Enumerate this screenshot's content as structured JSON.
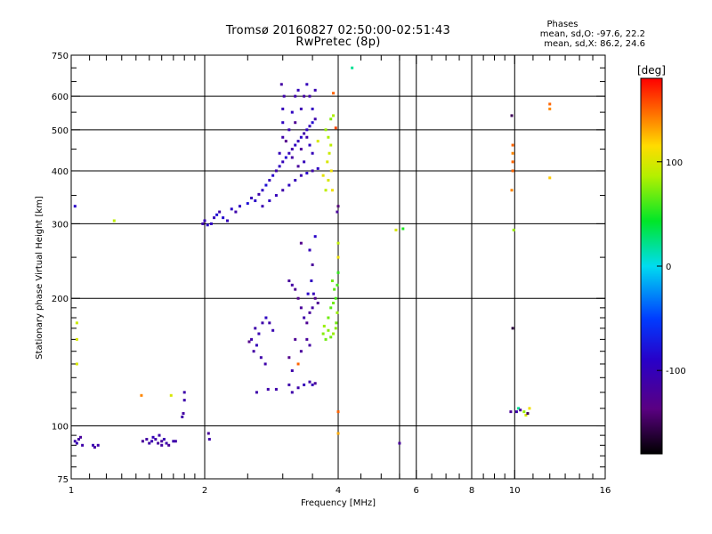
{
  "chart_data": {
    "type": "scatter",
    "title": "Tromsø 20160827 02:50:00-02:51:43",
    "subtitle": "RwPretec (8p)",
    "xlabel": "Frequency [MHz]",
    "ylabel": "Stationary phase Virtual Height [km]",
    "x_scale": "log",
    "y_scale": "log",
    "xlim": [
      1,
      16
    ],
    "ylim": [
      75,
      750
    ],
    "xticks": [
      1,
      2,
      4,
      6,
      8,
      10,
      16
    ],
    "xtick_labels": [
      "1",
      "2",
      "4",
      "6",
      "8",
      "10",
      "16"
    ],
    "xgrid": [
      2,
      4,
      5.5,
      6,
      8,
      10
    ],
    "yticks": [
      75,
      100,
      200,
      300,
      400,
      500,
      600,
      750
    ],
    "ytick_labels": [
      "75",
      "100",
      "200",
      "300",
      "400",
      "500",
      "600",
      "750"
    ],
    "ygrid": [
      100,
      200,
      300,
      400,
      500,
      600
    ],
    "grid": true,
    "stats": {
      "heading": "Phases",
      "o_line": "mean, sd,O: -97.6, 22.2",
      "x_line": "mean, sd,X:  86.2, 24.6"
    },
    "colorbar": {
      "label": "[deg]",
      "min": -180,
      "max": 180,
      "ticks": [
        100,
        0,
        -100
      ],
      "tick_labels": [
        "100",
        "0",
        "-100"
      ]
    },
    "points": [
      [
        1.02,
        92,
        -110
      ],
      [
        1.04,
        93,
        -115
      ],
      [
        1.03,
        91,
        -105
      ],
      [
        1.06,
        90,
        -110
      ],
      [
        1.05,
        94,
        -120
      ],
      [
        1.12,
        90,
        -105
      ],
      [
        1.15,
        90,
        -110
      ],
      [
        1.13,
        89,
        -115
      ],
      [
        1.02,
        330,
        -90
      ],
      [
        1.25,
        305,
        90
      ],
      [
        1.03,
        160,
        100
      ],
      [
        1.03,
        140,
        100
      ],
      [
        1.03,
        175,
        95
      ],
      [
        1.44,
        118,
        140
      ],
      [
        1.45,
        92,
        -120
      ],
      [
        1.48,
        93,
        -115
      ],
      [
        1.5,
        91,
        -110
      ],
      [
        1.52,
        92,
        -108
      ],
      [
        1.55,
        93,
        -112
      ],
      [
        1.57,
        91,
        -116
      ],
      [
        1.6,
        92,
        -118
      ],
      [
        1.62,
        93,
        -105
      ],
      [
        1.64,
        91,
        -110
      ],
      [
        1.66,
        90,
        -120
      ],
      [
        1.53,
        94,
        -100
      ],
      [
        1.58,
        95,
        -110
      ],
      [
        1.6,
        90,
        -115
      ],
      [
        1.7,
        92,
        -108
      ],
      [
        1.72,
        92,
        -112
      ],
      [
        1.68,
        118,
        100
      ],
      [
        1.8,
        120,
        -110
      ],
      [
        1.8,
        115,
        -110
      ],
      [
        1.78,
        105,
        -110
      ],
      [
        1.79,
        107,
        -115
      ],
      [
        2.04,
        96,
        -120
      ],
      [
        2.05,
        93,
        -110
      ],
      [
        1.98,
        300,
        -110
      ],
      [
        2.0,
        305,
        -100
      ],
      [
        2.03,
        298,
        -90
      ],
      [
        2.07,
        300,
        -95
      ],
      [
        2.1,
        310,
        -100
      ],
      [
        2.13,
        315,
        -80
      ],
      [
        2.16,
        320,
        -110
      ],
      [
        2.2,
        310,
        -85
      ],
      [
        2.25,
        305,
        -100
      ],
      [
        2.3,
        325,
        -90
      ],
      [
        2.35,
        320,
        -110
      ],
      [
        2.4,
        330,
        -95
      ],
      [
        2.5,
        335,
        -80
      ],
      [
        2.55,
        345,
        -100
      ],
      [
        2.6,
        340,
        -90
      ],
      [
        2.65,
        352,
        -110
      ],
      [
        2.7,
        360,
        -95
      ],
      [
        2.75,
        370,
        -80
      ],
      [
        2.8,
        380,
        -100
      ],
      [
        2.85,
        390,
        -90
      ],
      [
        2.9,
        400,
        -110
      ],
      [
        2.95,
        410,
        -95
      ],
      [
        3.0,
        420,
        -100
      ],
      [
        3.05,
        430,
        -85
      ],
      [
        3.1,
        440,
        -100
      ],
      [
        3.15,
        450,
        -110
      ],
      [
        3.2,
        460,
        -95
      ],
      [
        3.25,
        470,
        -100
      ],
      [
        3.3,
        480,
        -90
      ],
      [
        3.35,
        490,
        -110
      ],
      [
        3.4,
        500,
        -95
      ],
      [
        3.45,
        510,
        -100
      ],
      [
        3.5,
        520,
        -85
      ],
      [
        3.55,
        530,
        -110
      ],
      [
        2.7,
        330,
        -105
      ],
      [
        2.8,
        340,
        -95
      ],
      [
        2.9,
        350,
        -100
      ],
      [
        3.0,
        360,
        -110
      ],
      [
        3.1,
        370,
        -95
      ],
      [
        3.2,
        380,
        -100
      ],
      [
        3.3,
        390,
        -105
      ],
      [
        3.4,
        395,
        -90
      ],
      [
        3.5,
        400,
        -110
      ],
      [
        3.6,
        405,
        -95
      ],
      [
        2.95,
        440,
        -100
      ],
      [
        3.0,
        480,
        -110
      ],
      [
        3.0,
        520,
        -95
      ],
      [
        3.0,
        560,
        -100
      ],
      [
        3.02,
        600,
        -110
      ],
      [
        2.98,
        640,
        -115
      ],
      [
        3.1,
        500,
        -105
      ],
      [
        3.15,
        550,
        -95
      ],
      [
        3.2,
        600,
        -110
      ],
      [
        3.25,
        620,
        -100
      ],
      [
        3.3,
        560,
        -105
      ],
      [
        3.35,
        600,
        -115
      ],
      [
        3.4,
        640,
        -100
      ],
      [
        3.45,
        600,
        -110
      ],
      [
        3.5,
        560,
        -95
      ],
      [
        3.55,
        620,
        -105
      ],
      [
        3.5,
        440,
        -100
      ],
      [
        3.45,
        460,
        -95
      ],
      [
        3.4,
        480,
        -110
      ],
      [
        3.35,
        420,
        -100
      ],
      [
        3.25,
        410,
        -120
      ],
      [
        3.15,
        430,
        -115
      ],
      [
        3.05,
        470,
        -130
      ],
      [
        3.2,
        520,
        -125
      ],
      [
        3.3,
        450,
        -120
      ],
      [
        3.75,
        500,
        80
      ],
      [
        3.8,
        480,
        85
      ],
      [
        3.85,
        460,
        90
      ],
      [
        3.82,
        440,
        95
      ],
      [
        3.78,
        420,
        100
      ],
      [
        3.86,
        400,
        110
      ],
      [
        3.8,
        380,
        100
      ],
      [
        3.7,
        390,
        105
      ],
      [
        3.75,
        360,
        90
      ],
      [
        3.85,
        530,
        75
      ],
      [
        3.6,
        470,
        100
      ],
      [
        3.9,
        610,
        150
      ],
      [
        3.95,
        505,
        160
      ],
      [
        4.0,
        330,
        -140
      ],
      [
        3.98,
        320,
        -120
      ],
      [
        4.0,
        270,
        90
      ],
      [
        4.0,
        250,
        110
      ],
      [
        4.3,
        700,
        20
      ],
      [
        3.9,
        540,
        85
      ],
      [
        3.88,
        360,
        110
      ],
      [
        2.55,
        160,
        -110
      ],
      [
        2.6,
        170,
        -110
      ],
      [
        2.65,
        165,
        -105
      ],
      [
        2.58,
        150,
        -115
      ],
      [
        2.62,
        155,
        -100
      ],
      [
        2.7,
        175,
        -110
      ],
      [
        2.75,
        180,
        -95
      ],
      [
        2.8,
        175,
        -110
      ],
      [
        2.85,
        168,
        -105
      ],
      [
        2.52,
        158,
        -130
      ],
      [
        2.68,
        145,
        -110
      ],
      [
        2.74,
        140,
        -110
      ],
      [
        2.62,
        120,
        -110
      ],
      [
        2.78,
        122,
        -110
      ],
      [
        2.9,
        122,
        -110
      ],
      [
        3.1,
        125,
        -110
      ],
      [
        3.15,
        120,
        -110
      ],
      [
        3.25,
        123,
        -110
      ],
      [
        3.35,
        125,
        -100
      ],
      [
        3.45,
        127,
        -110
      ],
      [
        3.5,
        125,
        -100
      ],
      [
        3.55,
        126,
        -120
      ],
      [
        3.1,
        220,
        -120
      ],
      [
        3.15,
        215,
        -115
      ],
      [
        3.2,
        210,
        -125
      ],
      [
        3.25,
        200,
        -130
      ],
      [
        3.3,
        190,
        -120
      ],
      [
        3.35,
        180,
        -110
      ],
      [
        3.4,
        175,
        -125
      ],
      [
        3.45,
        185,
        -120
      ],
      [
        3.5,
        190,
        -115
      ],
      [
        3.55,
        200,
        -130
      ],
      [
        3.6,
        195,
        -125
      ],
      [
        3.4,
        160,
        -120
      ],
      [
        3.45,
        155,
        -115
      ],
      [
        3.3,
        150,
        -120
      ],
      [
        3.2,
        160,
        -125
      ],
      [
        3.1,
        145,
        -130
      ],
      [
        3.3,
        270,
        -130
      ],
      [
        3.5,
        240,
        -120
      ],
      [
        3.45,
        260,
        -100
      ],
      [
        3.55,
        280,
        -90
      ],
      [
        3.48,
        220,
        -95
      ],
      [
        3.52,
        205,
        -100
      ],
      [
        3.42,
        205,
        -90
      ],
      [
        3.15,
        135,
        -110
      ],
      [
        3.25,
        140,
        150
      ],
      [
        3.7,
        165,
        75
      ],
      [
        3.75,
        160,
        70
      ],
      [
        3.8,
        168,
        75
      ],
      [
        3.85,
        162,
        70
      ],
      [
        3.9,
        165,
        80
      ],
      [
        3.95,
        170,
        75
      ],
      [
        3.72,
        172,
        80
      ],
      [
        3.8,
        180,
        70
      ],
      [
        3.85,
        190,
        65
      ],
      [
        3.9,
        195,
        70
      ],
      [
        3.95,
        200,
        60
      ],
      [
        3.92,
        210,
        65
      ],
      [
        3.88,
        220,
        70
      ],
      [
        3.98,
        215,
        60
      ],
      [
        4.0,
        230,
        55
      ],
      [
        3.98,
        185,
        80
      ],
      [
        3.96,
        175,
        70
      ],
      [
        4.0,
        108,
        150
      ],
      [
        4.0,
        96,
        130
      ],
      [
        5.4,
        290,
        100
      ],
      [
        5.6,
        292,
        50
      ],
      [
        5.5,
        91,
        -120
      ],
      [
        9.85,
        540,
        -150
      ],
      [
        9.9,
        460,
        150
      ],
      [
        9.9,
        440,
        140
      ],
      [
        9.9,
        420,
        150
      ],
      [
        9.9,
        400,
        150
      ],
      [
        9.85,
        360,
        140
      ],
      [
        9.95,
        290,
        80
      ],
      [
        9.9,
        170,
        -160
      ],
      [
        12.0,
        560,
        140
      ],
      [
        12.0,
        575,
        150
      ],
      [
        12.0,
        385,
        120
      ],
      [
        9.8,
        108,
        -120
      ],
      [
        10.1,
        108,
        -110
      ],
      [
        10.2,
        110,
        20
      ],
      [
        10.3,
        109,
        -120
      ],
      [
        10.5,
        108,
        80
      ],
      [
        10.6,
        106,
        100
      ],
      [
        10.7,
        107,
        -150
      ],
      [
        10.8,
        110,
        110
      ]
    ]
  }
}
